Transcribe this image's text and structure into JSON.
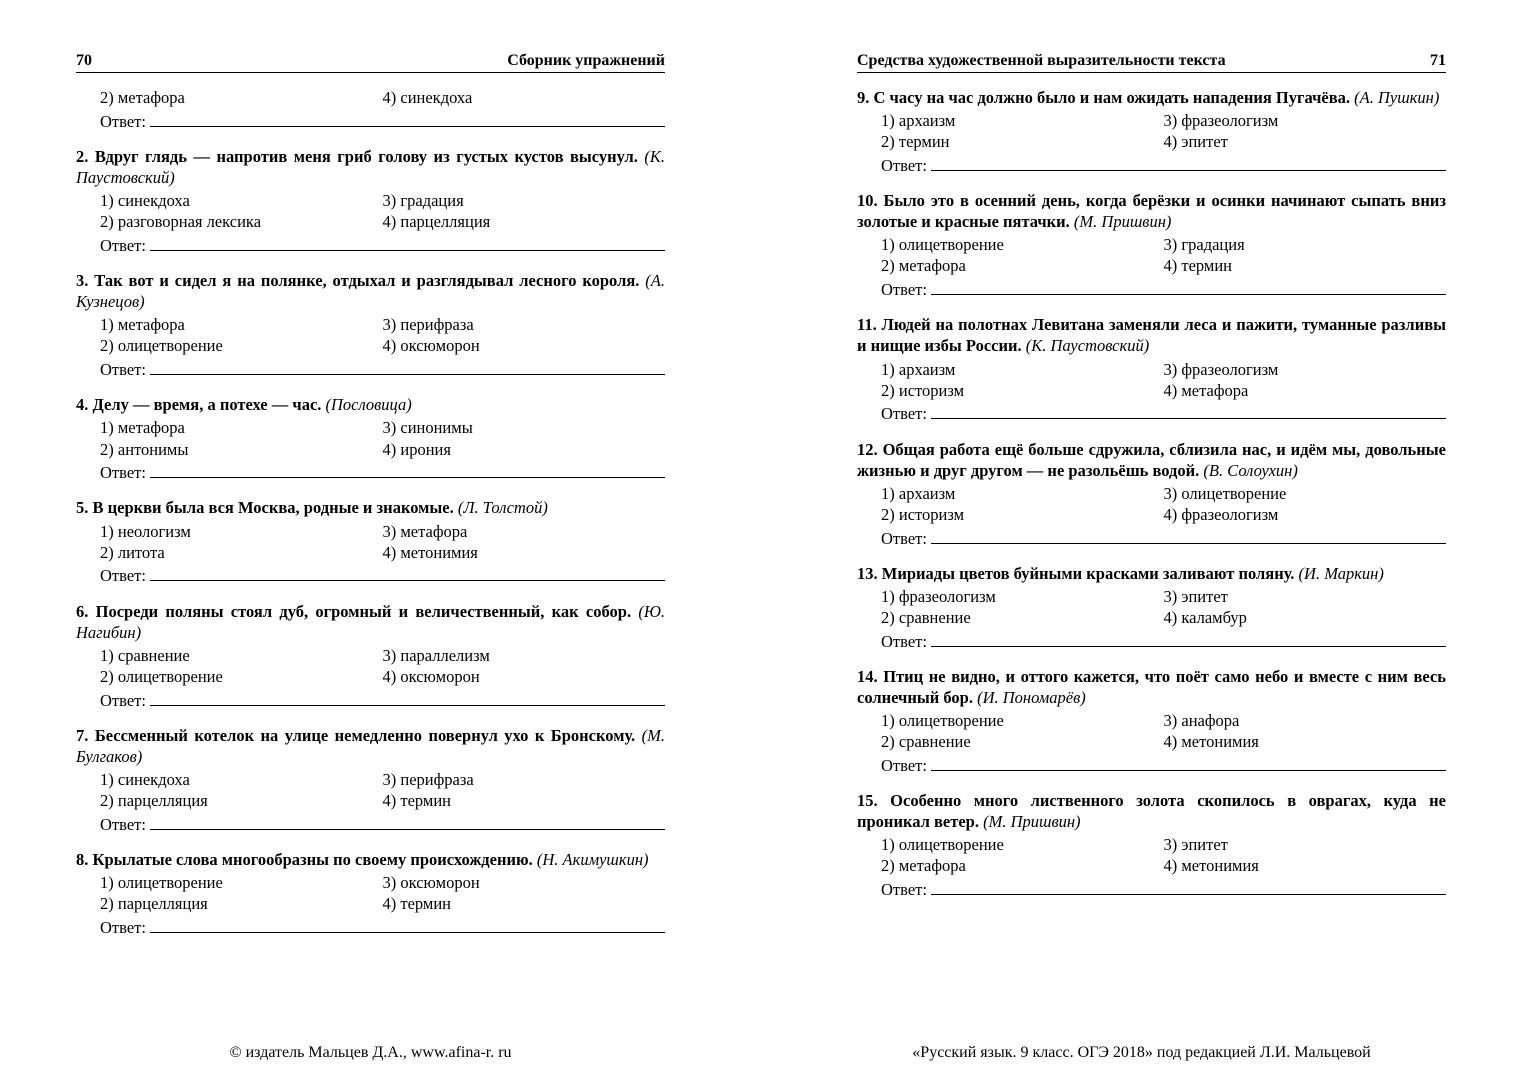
{
  "left": {
    "page_number": "70",
    "header": "Сборник упражнений",
    "footer": "© издатель Мальцев Д.А., www.afina-r. ru",
    "answer_label": "Ответ:",
    "questions": [
      {
        "prompt": "",
        "author": "",
        "options_left": [
          "2) метафора"
        ],
        "options_right": [
          "4) синекдоха"
        ]
      },
      {
        "prompt": "2. Вдруг глядь — напротив меня гриб голову из густых кустов высунул. ",
        "author": "(К. Паустовский)",
        "options_left": [
          "1) синекдоха",
          "2) разговорная лексика"
        ],
        "options_right": [
          "3) градация",
          "4) парцелляция"
        ]
      },
      {
        "prompt": "3. Так вот и сидел я на полянке, отдыхал и разглядывал лесного короля. ",
        "author": "(А. Кузнецов)",
        "options_left": [
          "1) метафора",
          "2) олицетворение"
        ],
        "options_right": [
          "3) перифраза",
          "4) оксюморон"
        ]
      },
      {
        "prompt": "4. Делу — время, а потехе — час. ",
        "author": "(Пословица)",
        "options_left": [
          "1) метафора",
          "2) антонимы"
        ],
        "options_right": [
          "3) синонимы",
          "4) ирония"
        ]
      },
      {
        "prompt": "5. В церкви была вся Москва, родные и знакомые. ",
        "author": "(Л. Толстой)",
        "options_left": [
          "1) неологизм",
          "2) литота"
        ],
        "options_right": [
          "3) метафора",
          "4) метонимия"
        ]
      },
      {
        "prompt": "6. Посреди поляны стоял дуб, огромный и величественный, как собор. ",
        "author": "(Ю. Нагибин)",
        "options_left": [
          "1) сравнение",
          "2) олицетворение"
        ],
        "options_right": [
          "3) параллелизм",
          "4) оксюморон"
        ]
      },
      {
        "prompt": "7. Бессменный котелок на улице немедленно повернул ухо к Бронскому. ",
        "author": "(М. Булгаков)",
        "options_left": [
          "1) синекдоха",
          "2) парцелляция"
        ],
        "options_right": [
          "3) перифраза",
          "4) термин"
        ]
      },
      {
        "prompt": "8. Крылатые слова многообразны по своему происхождению. ",
        "author": "(Н. Акимушкин)",
        "options_left": [
          "1) олицетворение",
          "2) парцелляция"
        ],
        "options_right": [
          "3) оксюморон",
          "4) термин"
        ]
      }
    ]
  },
  "right": {
    "page_number": "71",
    "header": "Средства художественной выразительности текста",
    "footer": "«Русский язык. 9 класс. ОГЭ 2018» под редакцией Л.И. Мальцевой",
    "answer_label": "Ответ:",
    "questions": [
      {
        "prompt": "9. С часу на час должно было и нам ожидать нападения Пугачёва. ",
        "author": "(А. Пушкин)",
        "options_left": [
          "1) архаизм",
          "2) термин"
        ],
        "options_right": [
          "3) фразеологизм",
          "4) эпитет"
        ]
      },
      {
        "prompt": "10. Было это в осенний день, когда берёзки и осинки начинают сыпать вниз золотые и красные пятачки. ",
        "author": "(М. Пришвин)",
        "options_left": [
          "1) олицетворение",
          "2) метафора"
        ],
        "options_right": [
          "3) градация",
          "4) термин"
        ]
      },
      {
        "prompt": "11. Людей на полотнах Левитана заменяли леса и пажити, туманные разливы и нищие избы России. ",
        "author": "(К. Паустовский)",
        "options_left": [
          "1) архаизм",
          "2) историзм"
        ],
        "options_right": [
          "3) фразеологизм",
          "4) метафора"
        ]
      },
      {
        "prompt": "12. Общая работа ещё больше сдружила, сблизила нас, и идём мы, довольные жизнью и друг другом — не разольёшь водой. ",
        "author": "(В. Солоухин)",
        "options_left": [
          "1) архаизм",
          "2) историзм"
        ],
        "options_right": [
          "3) олицетворение",
          "4) фразеологизм"
        ]
      },
      {
        "prompt": "13. Мириады цветов буйными красками заливают поляну. ",
        "author": "(И. Маркин)",
        "options_left": [
          "1) фразеологизм",
          "2) сравнение"
        ],
        "options_right": [
          "3) эпитет",
          "4) каламбур"
        ]
      },
      {
        "prompt": "14. Птиц не видно, и оттого кажется, что поёт само небо и вместе с ним весь солнечный бор. ",
        "author": "(И. Пономарёв)",
        "options_left": [
          "1) олицетворение",
          "2) сравнение"
        ],
        "options_right": [
          "3) анафора",
          "4) метонимия"
        ]
      },
      {
        "prompt": "15. Особенно много лиственного золота скопилось в оврагах, куда не проникал ветер. ",
        "author": "(М. Пришвин)",
        "options_left": [
          "1) олицетворение",
          "2) метафора"
        ],
        "options_right": [
          "3) эпитет",
          "4) метонимия"
        ]
      }
    ]
  }
}
